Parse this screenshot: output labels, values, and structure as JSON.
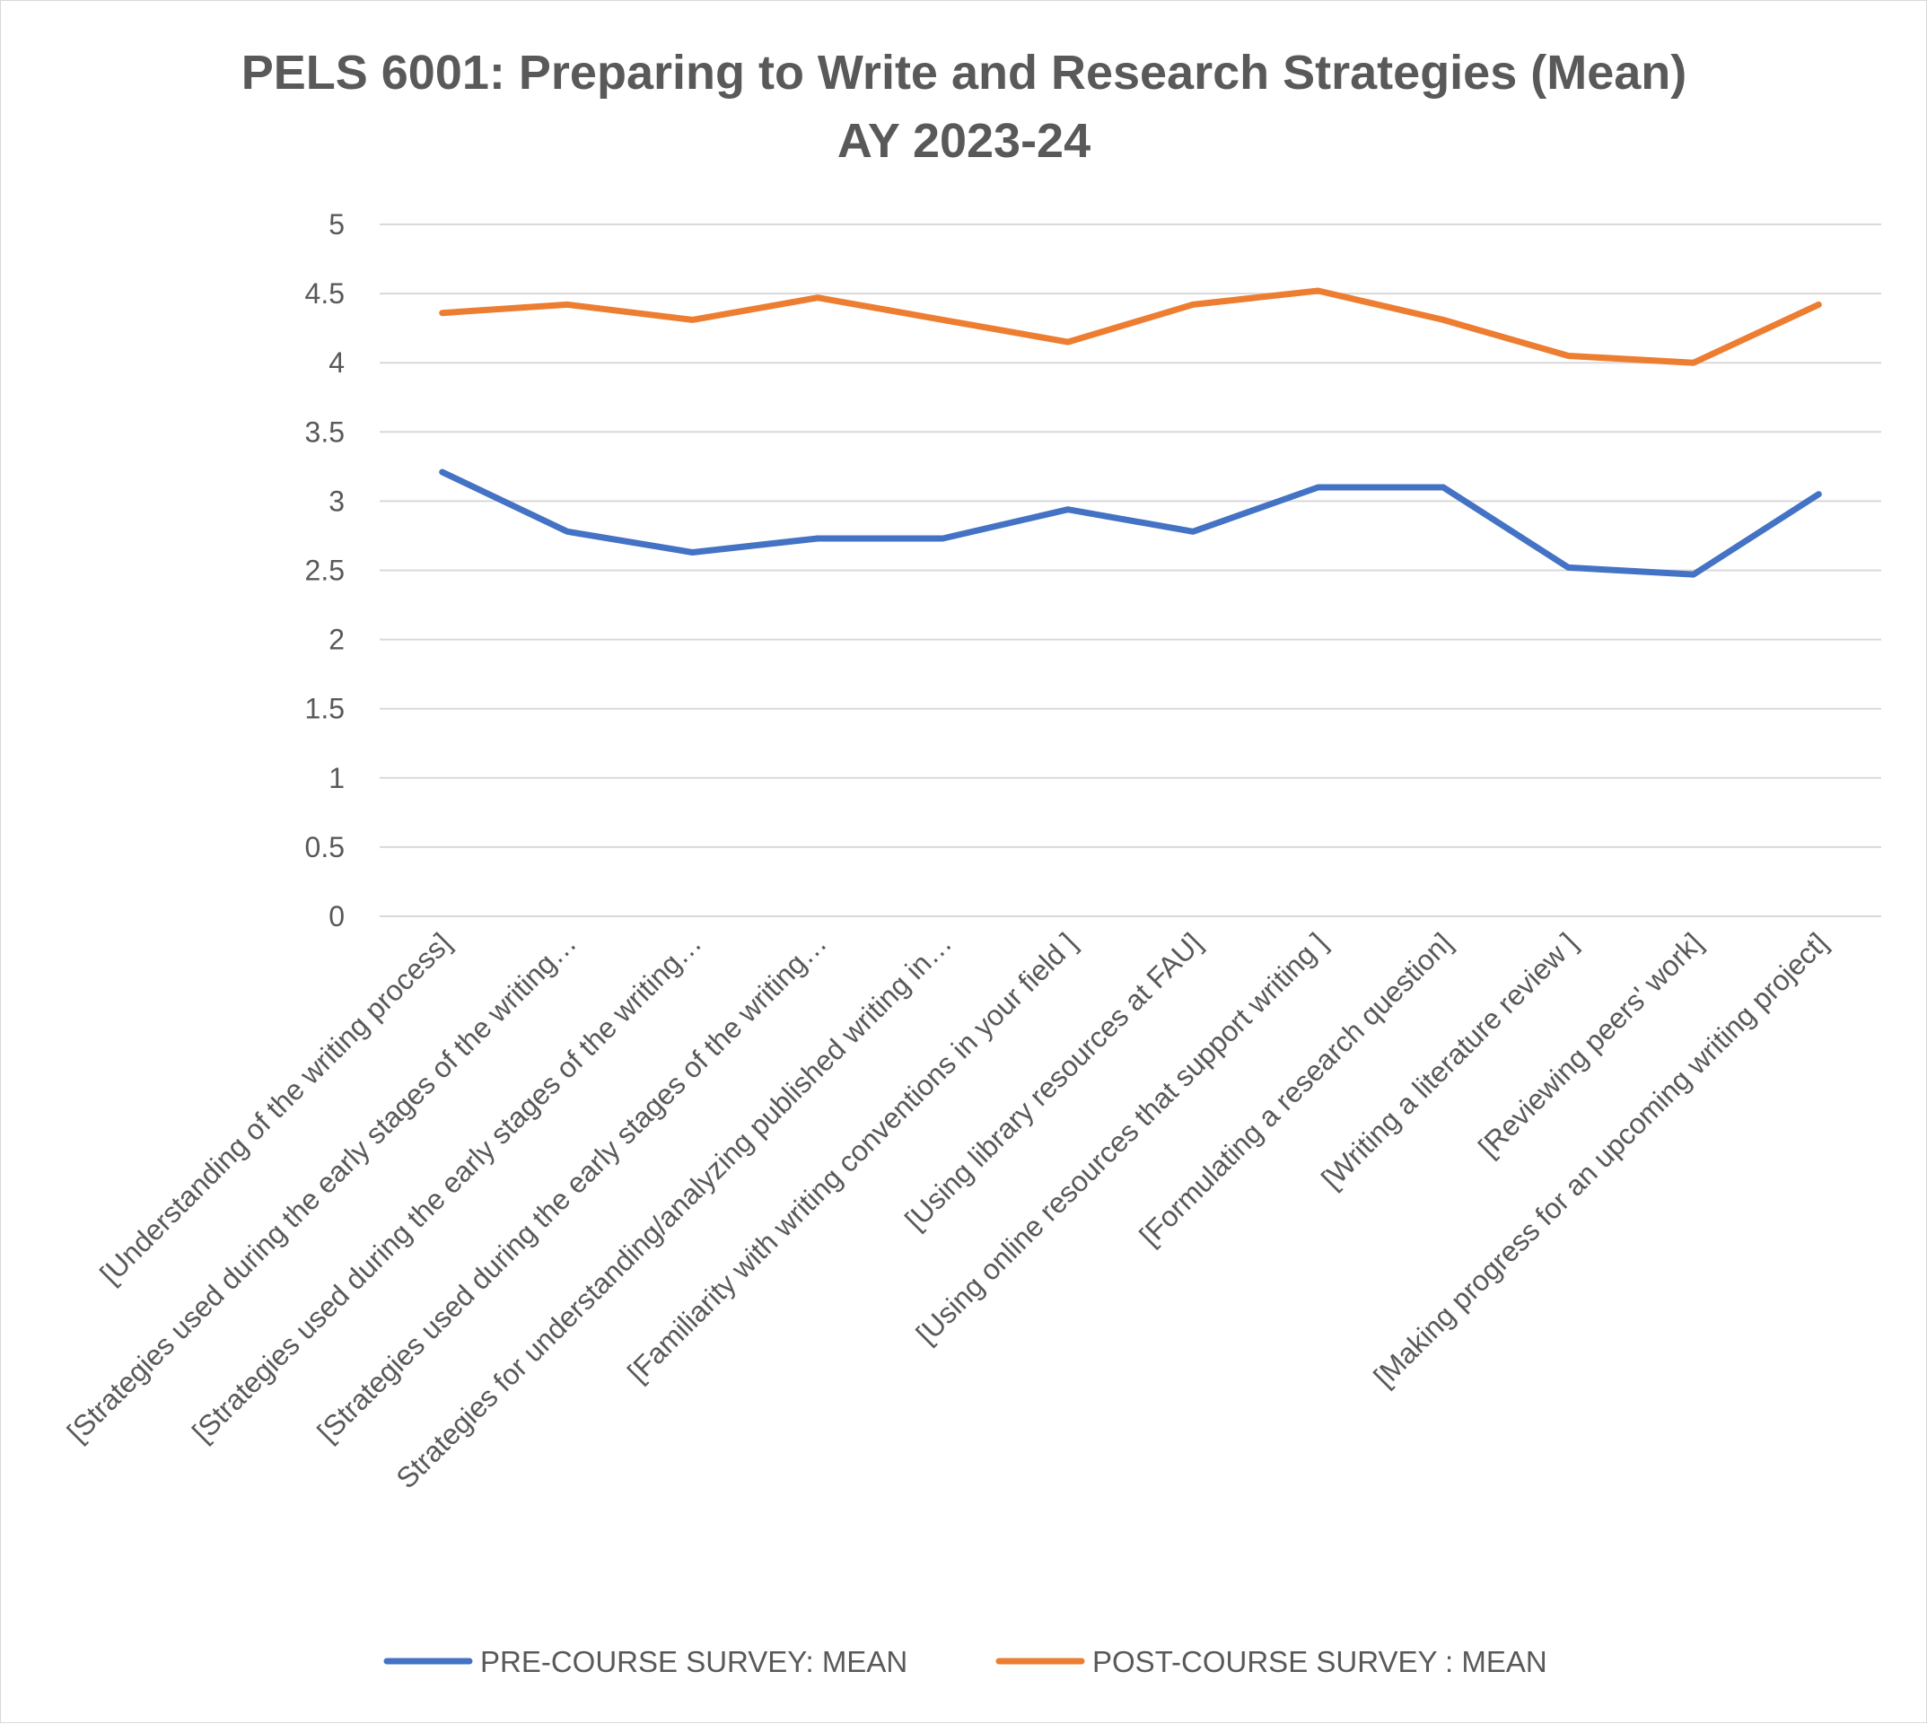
{
  "chart_data": {
    "type": "line",
    "title": "PELS 6001: Preparing  to Write and Research Strategies (Mean)",
    "subtitle": "AY 2023-24",
    "xlabel": "",
    "ylabel": "",
    "ylim": [
      0,
      5
    ],
    "yticks": [
      "0",
      "0.5",
      "1",
      "1.5",
      "2",
      "2.5",
      "3",
      "3.5",
      "4",
      "4.5",
      "5"
    ],
    "grid": true,
    "legend_position": "bottom",
    "categories": [
      "[Understanding of the writing process]",
      "[Strategies used during the early stages of the writing…",
      "[Strategies used during the early stages of the writing…",
      "[Strategies used during the early stages of the writing…",
      "Strategies for understanding/analyzing published writing in…",
      "[Familiarity with writing conventions in your field ]",
      "[Using library resources at FAU]",
      "[Using online resources that support writing ]",
      "[Formulating a research question]",
      "[Writing a literature review ]",
      "[Reviewing peers' work]",
      "[Making progress for an upcoming writing project]"
    ],
    "series": [
      {
        "name": "PRE-COURSE SURVEY: MEAN",
        "color": "#4472c4",
        "values": [
          3.21,
          2.78,
          2.63,
          2.73,
          2.73,
          2.94,
          2.78,
          3.1,
          3.1,
          2.52,
          2.47,
          3.05
        ]
      },
      {
        "name": "POST-COURSE SURVEY : MEAN",
        "color": "#ed7d31",
        "values": [
          4.36,
          4.42,
          4.31,
          4.47,
          4.31,
          4.15,
          4.42,
          4.52,
          4.31,
          4.05,
          4.0,
          4.42
        ]
      }
    ]
  }
}
